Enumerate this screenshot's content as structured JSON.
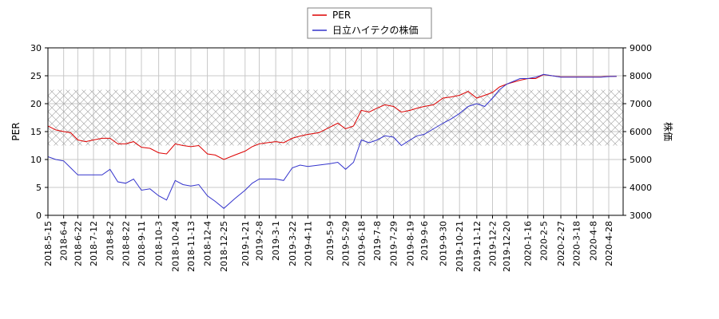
{
  "chart_data": {
    "type": "line",
    "legend_position": "top-center",
    "grid": true,
    "band": {
      "from": 12.5,
      "to": 22.5,
      "axis": "left",
      "pattern": "crosshatch"
    },
    "x_ticks": [
      "2018-5-15",
      "2018-6-4",
      "2018-6-22",
      "2018-7-12",
      "2018-8-2",
      "2018-8-22",
      "2018-9-11",
      "2018-10-3",
      "2018-10-24",
      "2018-11-13",
      "2018-12-4",
      "2018-12-25",
      "2019-1-21",
      "2019-2-8",
      "2019-3-1",
      "2019-3-22",
      "2019-4-11",
      "2019-5-9",
      "2019-5-29",
      "2019-6-18",
      "2019-7-8",
      "2019-7-29",
      "2019-8-19",
      "2019-9-6",
      "2019-9-30",
      "2019-10-21",
      "2019-11-12",
      "2019-12-2",
      "2019-12-20",
      "2020-1-16",
      "2020-2-5",
      "2020-2-27",
      "2020-3-18",
      "2020-4-8",
      "2020-4-28"
    ],
    "y_left": {
      "label": "PER",
      "min": 0,
      "max": 30,
      "ticks": [
        "0",
        "5",
        "10",
        "15",
        "20",
        "25",
        "30"
      ]
    },
    "y_right": {
      "label": "株価",
      "min": 3000,
      "max": 9000,
      "ticks": [
        "3000",
        "4000",
        "5000",
        "6000",
        "7000",
        "8000",
        "9000"
      ]
    },
    "series": [
      {
        "name": "PER",
        "axis": "left",
        "color": "#dd0000",
        "x": [
          "2018-5-15",
          "2018-5-25",
          "2018-6-4",
          "2018-6-13",
          "2018-6-22",
          "2018-7-2",
          "2018-7-12",
          "2018-7-23",
          "2018-8-2",
          "2018-8-12",
          "2018-8-22",
          "2018-9-1",
          "2018-9-11",
          "2018-9-22",
          "2018-10-3",
          "2018-10-13",
          "2018-10-24",
          "2018-11-3",
          "2018-11-13",
          "2018-11-23",
          "2018-12-4",
          "2018-12-14",
          "2018-12-25",
          "2019-1-8",
          "2019-1-21",
          "2019-1-30",
          "2019-2-8",
          "2019-2-18",
          "2019-3-1",
          "2019-3-11",
          "2019-3-22",
          "2019-4-1",
          "2019-4-11",
          "2019-4-25",
          "2019-5-9",
          "2019-5-19",
          "2019-5-29",
          "2019-6-8",
          "2019-6-18",
          "2019-6-28",
          "2019-7-8",
          "2019-7-18",
          "2019-7-29",
          "2019-8-8",
          "2019-8-19",
          "2019-8-28",
          "2019-9-6",
          "2019-9-18",
          "2019-9-30",
          "2019-10-10",
          "2019-10-21",
          "2019-11-1",
          "2019-11-12",
          "2019-11-22",
          "2019-12-2",
          "2019-12-11",
          "2019-12-20",
          "2020-1-6",
          "2020-1-16",
          "2020-1-26",
          "2020-2-5",
          "2020-2-16",
          "2020-2-27",
          "2020-3-8",
          "2020-3-18",
          "2020-3-29",
          "2020-4-8",
          "2020-4-18",
          "2020-4-28",
          "2020-5-8"
        ],
        "values": [
          16.0,
          15.3,
          15.0,
          14.8,
          13.5,
          13.2,
          13.5,
          13.8,
          13.8,
          12.8,
          12.8,
          13.2,
          12.2,
          12.0,
          11.2,
          11.0,
          12.8,
          12.5,
          12.3,
          12.5,
          11.0,
          10.8,
          10.0,
          10.8,
          11.5,
          12.3,
          12.8,
          13.0,
          13.2,
          13.0,
          13.8,
          14.2,
          14.5,
          14.8,
          15.8,
          16.5,
          15.5,
          16.0,
          18.8,
          18.5,
          19.2,
          19.8,
          19.5,
          18.5,
          18.8,
          19.2,
          19.5,
          19.8,
          21.0,
          21.2,
          21.5,
          22.2,
          21.0,
          21.5,
          22.0,
          23.0,
          23.5,
          24.2,
          24.5,
          24.5,
          25.2,
          25.0,
          24.8,
          24.8,
          24.8,
          24.8,
          24.8,
          24.8,
          24.9,
          24.9
        ]
      },
      {
        "name": "日立ハイテクの株価",
        "axis": "right",
        "color": "#3333cc",
        "x": [
          "2018-5-15",
          "2018-5-25",
          "2018-6-4",
          "2018-6-13",
          "2018-6-22",
          "2018-7-2",
          "2018-7-12",
          "2018-7-23",
          "2018-8-2",
          "2018-8-12",
          "2018-8-22",
          "2018-9-1",
          "2018-9-11",
          "2018-9-22",
          "2018-10-3",
          "2018-10-13",
          "2018-10-24",
          "2018-11-3",
          "2018-11-13",
          "2018-11-23",
          "2018-12-4",
          "2018-12-14",
          "2018-12-25",
          "2019-1-8",
          "2019-1-21",
          "2019-1-30",
          "2019-2-8",
          "2019-2-18",
          "2019-3-1",
          "2019-3-11",
          "2019-3-22",
          "2019-4-1",
          "2019-4-11",
          "2019-4-25",
          "2019-5-9",
          "2019-5-19",
          "2019-5-29",
          "2019-6-8",
          "2019-6-18",
          "2019-6-28",
          "2019-7-8",
          "2019-7-18",
          "2019-7-29",
          "2019-8-8",
          "2019-8-19",
          "2019-8-28",
          "2019-9-6",
          "2019-9-18",
          "2019-9-30",
          "2019-10-10",
          "2019-10-21",
          "2019-11-1",
          "2019-11-12",
          "2019-11-22",
          "2019-12-2",
          "2019-12-11",
          "2019-12-20",
          "2020-1-6",
          "2020-1-16",
          "2020-1-26",
          "2020-2-5",
          "2020-2-16",
          "2020-2-27",
          "2020-3-8",
          "2020-3-18",
          "2020-3-29",
          "2020-4-8",
          "2020-4-18",
          "2020-4-28",
          "2020-5-8"
        ],
        "values": [
          5100,
          5000,
          4950,
          4700,
          4450,
          4450,
          4450,
          4450,
          4650,
          4200,
          4150,
          4300,
          3900,
          3950,
          3700,
          3550,
          4250,
          4100,
          4050,
          4100,
          3700,
          3500,
          3250,
          3600,
          3900,
          4150,
          4300,
          4300,
          4300,
          4250,
          4700,
          4800,
          4750,
          4800,
          4850,
          4900,
          4650,
          4900,
          5700,
          5600,
          5700,
          5850,
          5800,
          5500,
          5700,
          5850,
          5900,
          6100,
          6300,
          6450,
          6650,
          6900,
          7000,
          6900,
          7200,
          7500,
          7700,
          7900,
          7900,
          7950,
          8050,
          8000,
          7950,
          7950,
          7950,
          7950,
          7950,
          7950,
          7970,
          7980
        ]
      }
    ]
  }
}
